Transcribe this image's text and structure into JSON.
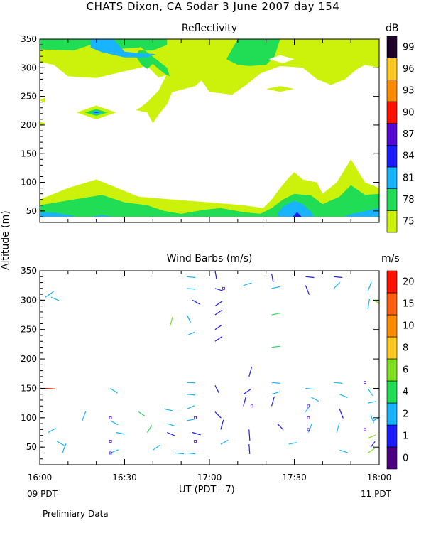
{
  "title": "CHATS Dixon, CA  Sodar    3 June 2007  day 154",
  "ylabel": "Altitude (m)",
  "xlabel": "UT  (PDT - 7)",
  "left_bottom_label": "09 PDT",
  "right_bottom_label": "11 PDT",
  "footer": "Prelimiary Data",
  "colors": {
    "c75": "#ccf20c",
    "c78": "#21dc55",
    "c81": "#18b4ff",
    "c84": "#1c1cff",
    "c87": "#540ad4",
    "c90": "#ff1200",
    "c93": "#ff8c00",
    "c96": "#ffc820",
    "c99": "#1c0028"
  },
  "chart_data": [
    {
      "type": "heatmap",
      "title": "Reflectivity",
      "colorbar_unit": "dB",
      "colorbar_ticks": [
        "75",
        "78",
        "81",
        "84",
        "87",
        "90",
        "93",
        "96",
        "99"
      ],
      "x_ticks": [
        "16:00",
        "16:30",
        "17:00",
        "17:30",
        "18:00"
      ],
      "xlim": [
        "16:00",
        "18:00"
      ],
      "y_ticks": [
        "50",
        "100",
        "150",
        "200",
        "250",
        "300",
        "350"
      ],
      "ylim": [
        30,
        350
      ],
      "z_levels": [
        75,
        78,
        81,
        84,
        87,
        90,
        93,
        96,
        99
      ],
      "regions": [
        {
          "level": 75,
          "description": "top band and lower band"
        },
        {
          "level": 78,
          "description": "upper 320-350 m band and lower 50-100 m band"
        },
        {
          "level": 81,
          "description": "patches near 220 m at 16:20, 320-350 m at 16:25, 40-70 m at 17:30"
        },
        {
          "level": 84,
          "description": "core near 220 m at 16:20 and 40 m at 17:30"
        }
      ]
    },
    {
      "type": "scatter",
      "title": "Wind Barbs (m/s)",
      "colorbar_unit": "m/s",
      "colorbar_ticks": [
        "0",
        "1",
        "2",
        "4",
        "6",
        "8",
        "10",
        "15",
        "20"
      ],
      "x_ticks": [
        "16:00",
        "16:30",
        "17:00",
        "17:30",
        "18:00"
      ],
      "xlim": [
        "16:00",
        "18:00"
      ],
      "y_ticks": [
        "50",
        "100",
        "150",
        "200",
        "250",
        "300",
        "350"
      ],
      "ylim": [
        20,
        350
      ]
    }
  ]
}
